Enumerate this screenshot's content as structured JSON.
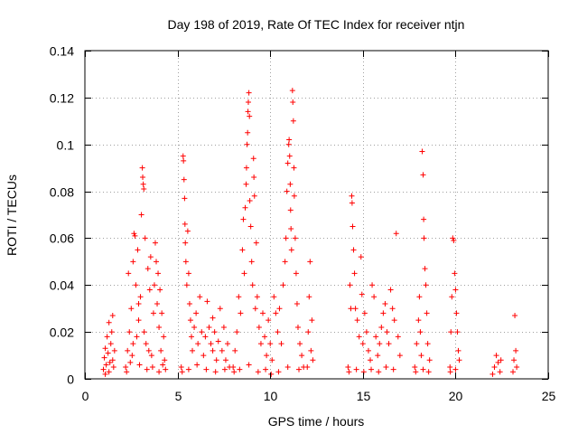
{
  "chart_data": {
    "type": "scatter",
    "title": "Day 198 of 2019, Rate Of TEC Index for receiver ntjn",
    "xlabel": "GPS time / hours",
    "ylabel": "ROTI / TECUs",
    "xlim": [
      0,
      25
    ],
    "ylim": [
      0,
      0.14
    ],
    "xticks": [
      0,
      5,
      10,
      15,
      20,
      25
    ],
    "xtick_labels": [
      "0",
      "5",
      "10",
      "15",
      "20",
      "25"
    ],
    "yticks": [
      0,
      0.02,
      0.04,
      0.06,
      0.08,
      0.1,
      0.12,
      0.14
    ],
    "ytick_labels": [
      "0",
      "0.02",
      "0.04",
      "0.06",
      "0.08",
      "0.1",
      "0.12",
      "0.14"
    ],
    "grid": true,
    "marker": "+",
    "color": "#ff0000",
    "series": [
      {
        "name": "ROTI",
        "points": [
          [
            1.0,
            0.004
          ],
          [
            1.05,
            0.009
          ],
          [
            1.1,
            0.013
          ],
          [
            1.15,
            0.006
          ],
          [
            1.2,
            0.018
          ],
          [
            1.25,
            0.011
          ],
          [
            1.3,
            0.024
          ],
          [
            1.35,
            0.007
          ],
          [
            1.4,
            0.015
          ],
          [
            1.45,
            0.02
          ],
          [
            1.5,
            0.027
          ],
          [
            1.55,
            0.005
          ],
          [
            1.6,
            0.012
          ],
          [
            1.1,
            0.002
          ],
          [
            1.3,
            0.003
          ],
          [
            1.5,
            0.008
          ],
          [
            2.2,
            0.005
          ],
          [
            2.3,
            0.012
          ],
          [
            2.35,
            0.045
          ],
          [
            2.4,
            0.02
          ],
          [
            2.5,
            0.03
          ],
          [
            2.6,
            0.05
          ],
          [
            2.65,
            0.062
          ],
          [
            2.7,
            0.061
          ],
          [
            2.75,
            0.04
          ],
          [
            2.8,
            0.018
          ],
          [
            2.85,
            0.055
          ],
          [
            2.9,
            0.025
          ],
          [
            3.0,
            0.035
          ],
          [
            3.05,
            0.07
          ],
          [
            3.1,
            0.09
          ],
          [
            3.12,
            0.086
          ],
          [
            3.15,
            0.083
          ],
          [
            3.18,
            0.081
          ],
          [
            3.2,
            0.02
          ],
          [
            3.25,
            0.06
          ],
          [
            3.3,
            0.015
          ],
          [
            3.4,
            0.047
          ],
          [
            3.5,
            0.038
          ],
          [
            3.55,
            0.052
          ],
          [
            3.6,
            0.01
          ],
          [
            3.7,
            0.028
          ],
          [
            3.75,
            0.04
          ],
          [
            3.8,
            0.058
          ],
          [
            3.85,
            0.05
          ],
          [
            3.9,
            0.032
          ],
          [
            3.95,
            0.045
          ],
          [
            4.0,
            0.022
          ],
          [
            4.05,
            0.038
          ],
          [
            4.1,
            0.012
          ],
          [
            4.15,
            0.028
          ],
          [
            4.2,
            0.006
          ],
          [
            4.25,
            0.018
          ],
          [
            4.3,
            0.008
          ],
          [
            4.35,
            0.004
          ],
          [
            2.25,
            0.003
          ],
          [
            2.45,
            0.007
          ],
          [
            2.55,
            0.01
          ],
          [
            2.95,
            0.006
          ],
          [
            3.35,
            0.004
          ],
          [
            3.45,
            0.012
          ],
          [
            3.65,
            0.005
          ],
          [
            4.0,
            0.003
          ],
          [
            2.6,
            0.015
          ],
          [
            2.9,
            0.032
          ],
          [
            5.2,
            0.005
          ],
          [
            5.3,
            0.095
          ],
          [
            5.32,
            0.093
          ],
          [
            5.35,
            0.085
          ],
          [
            5.38,
            0.077
          ],
          [
            5.4,
            0.066
          ],
          [
            5.42,
            0.058
          ],
          [
            5.45,
            0.05
          ],
          [
            5.5,
            0.04
          ],
          [
            5.55,
            0.063
          ],
          [
            5.6,
            0.045
          ],
          [
            5.65,
            0.032
          ],
          [
            5.7,
            0.025
          ],
          [
            5.75,
            0.018
          ],
          [
            5.8,
            0.012
          ],
          [
            5.9,
            0.022
          ],
          [
            6.0,
            0.028
          ],
          [
            6.1,
            0.015
          ],
          [
            6.2,
            0.035
          ],
          [
            6.3,
            0.02
          ],
          [
            6.4,
            0.01
          ],
          [
            6.5,
            0.018
          ],
          [
            6.6,
            0.033
          ],
          [
            6.7,
            0.022
          ],
          [
            6.8,
            0.015
          ],
          [
            6.9,
            0.012
          ],
          [
            7.0,
            0.02
          ],
          [
            7.1,
            0.008
          ],
          [
            7.2,
            0.016
          ],
          [
            7.3,
            0.03
          ],
          [
            7.4,
            0.012
          ],
          [
            7.5,
            0.022
          ],
          [
            7.6,
            0.008
          ],
          [
            7.7,
            0.015
          ],
          [
            7.8,
            0.005
          ],
          [
            5.25,
            0.003
          ],
          [
            5.6,
            0.004
          ],
          [
            6.05,
            0.006
          ],
          [
            6.55,
            0.004
          ],
          [
            7.05,
            0.003
          ],
          [
            7.55,
            0.004
          ],
          [
            6.9,
            0.026
          ],
          [
            8.0,
            0.005
          ],
          [
            8.1,
            0.012
          ],
          [
            8.2,
            0.02
          ],
          [
            8.3,
            0.035
          ],
          [
            8.4,
            0.028
          ],
          [
            8.5,
            0.055
          ],
          [
            8.55,
            0.068
          ],
          [
            8.6,
            0.045
          ],
          [
            8.65,
            0.073
          ],
          [
            8.7,
            0.083
          ],
          [
            8.72,
            0.09
          ],
          [
            8.75,
            0.1
          ],
          [
            8.78,
            0.105
          ],
          [
            8.8,
            0.114
          ],
          [
            8.82,
            0.118
          ],
          [
            8.85,
            0.122
          ],
          [
            8.88,
            0.112
          ],
          [
            8.9,
            0.076
          ],
          [
            8.95,
            0.065
          ],
          [
            9.0,
            0.05
          ],
          [
            9.05,
            0.04
          ],
          [
            9.1,
            0.094
          ],
          [
            9.12,
            0.086
          ],
          [
            9.15,
            0.078
          ],
          [
            9.2,
            0.03
          ],
          [
            9.25,
            0.058
          ],
          [
            9.3,
            0.035
          ],
          [
            9.4,
            0.022
          ],
          [
            9.5,
            0.015
          ],
          [
            9.6,
            0.028
          ],
          [
            9.7,
            0.018
          ],
          [
            9.8,
            0.01
          ],
          [
            9.9,
            0.025
          ],
          [
            10.0,
            0.015
          ],
          [
            10.1,
            0.008
          ],
          [
            10.2,
            0.035
          ],
          [
            10.3,
            0.028
          ],
          [
            10.4,
            0.02
          ],
          [
            10.5,
            0.03
          ],
          [
            10.6,
            0.015
          ],
          [
            10.7,
            0.04
          ],
          [
            10.8,
            0.05
          ],
          [
            10.85,
            0.06
          ],
          [
            10.9,
            0.08
          ],
          [
            10.95,
            0.092
          ],
          [
            11.0,
            0.1
          ],
          [
            11.02,
            0.102
          ],
          [
            11.05,
            0.095
          ],
          [
            11.08,
            0.083
          ],
          [
            11.1,
            0.072
          ],
          [
            11.12,
            0.064
          ],
          [
            11.15,
            0.055
          ],
          [
            11.2,
            0.123
          ],
          [
            11.22,
            0.118
          ],
          [
            11.25,
            0.11
          ],
          [
            11.28,
            0.09
          ],
          [
            11.3,
            0.078
          ],
          [
            11.35,
            0.06
          ],
          [
            11.4,
            0.045
          ],
          [
            11.45,
            0.032
          ],
          [
            11.5,
            0.022
          ],
          [
            11.6,
            0.015
          ],
          [
            11.7,
            0.01
          ],
          [
            11.8,
            0.005
          ],
          [
            8.05,
            0.003
          ],
          [
            8.35,
            0.004
          ],
          [
            8.85,
            0.006
          ],
          [
            9.35,
            0.003
          ],
          [
            9.75,
            0.004
          ],
          [
            10.05,
            0.002
          ],
          [
            10.45,
            0.003
          ],
          [
            10.95,
            0.005
          ],
          [
            11.55,
            0.004
          ],
          [
            12.0,
            0.005
          ],
          [
            12.05,
            0.02
          ],
          [
            12.1,
            0.035
          ],
          [
            12.15,
            0.05
          ],
          [
            12.2,
            0.012
          ],
          [
            12.25,
            0.025
          ],
          [
            12.3,
            0.008
          ],
          [
            14.2,
            0.005
          ],
          [
            14.3,
            0.04
          ],
          [
            14.35,
            0.03
          ],
          [
            14.4,
            0.078
          ],
          [
            14.42,
            0.075
          ],
          [
            14.45,
            0.065
          ],
          [
            14.5,
            0.055
          ],
          [
            14.55,
            0.045
          ],
          [
            14.6,
            0.03
          ],
          [
            14.7,
            0.025
          ],
          [
            14.8,
            0.018
          ],
          [
            14.9,
            0.052
          ],
          [
            14.95,
            0.036
          ],
          [
            15.0,
            0.015
          ],
          [
            15.1,
            0.028
          ],
          [
            15.2,
            0.02
          ],
          [
            15.3,
            0.012
          ],
          [
            15.4,
            0.008
          ],
          [
            15.5,
            0.04
          ],
          [
            15.6,
            0.035
          ],
          [
            15.7,
            0.018
          ],
          [
            15.8,
            0.01
          ],
          [
            15.9,
            0.015
          ],
          [
            16.0,
            0.022
          ],
          [
            16.1,
            0.028
          ],
          [
            16.2,
            0.032
          ],
          [
            16.3,
            0.02
          ],
          [
            16.4,
            0.015
          ],
          [
            16.5,
            0.038
          ],
          [
            16.6,
            0.03
          ],
          [
            16.7,
            0.025
          ],
          [
            16.8,
            0.062
          ],
          [
            16.9,
            0.018
          ],
          [
            17.0,
            0.01
          ],
          [
            14.25,
            0.003
          ],
          [
            14.65,
            0.004
          ],
          [
            15.05,
            0.003
          ],
          [
            15.45,
            0.004
          ],
          [
            15.85,
            0.003
          ],
          [
            16.25,
            0.005
          ],
          [
            16.65,
            0.004
          ],
          [
            17.8,
            0.005
          ],
          [
            17.9,
            0.015
          ],
          [
            18.0,
            0.025
          ],
          [
            18.05,
            0.035
          ],
          [
            18.1,
            0.02
          ],
          [
            18.15,
            0.01
          ],
          [
            18.2,
            0.097
          ],
          [
            18.25,
            0.087
          ],
          [
            18.28,
            0.068
          ],
          [
            18.3,
            0.06
          ],
          [
            18.35,
            0.047
          ],
          [
            18.4,
            0.04
          ],
          [
            18.45,
            0.028
          ],
          [
            18.5,
            0.015
          ],
          [
            18.6,
            0.008
          ],
          [
            17.85,
            0.003
          ],
          [
            18.25,
            0.004
          ],
          [
            18.55,
            0.003
          ],
          [
            19.7,
            0.005
          ],
          [
            19.75,
            0.02
          ],
          [
            19.8,
            0.035
          ],
          [
            19.85,
            0.06
          ],
          [
            19.9,
            0.059
          ],
          [
            19.95,
            0.045
          ],
          [
            20.0,
            0.038
          ],
          [
            20.05,
            0.028
          ],
          [
            20.1,
            0.02
          ],
          [
            20.15,
            0.012
          ],
          [
            20.2,
            0.008
          ],
          [
            19.72,
            0.003
          ],
          [
            20.0,
            0.004
          ],
          [
            22.0,
            0.002
          ],
          [
            22.1,
            0.005
          ],
          [
            22.2,
            0.01
          ],
          [
            22.3,
            0.007
          ],
          [
            22.4,
            0.003
          ],
          [
            22.45,
            0.008
          ],
          [
            23.1,
            0.003
          ],
          [
            23.15,
            0.008
          ],
          [
            23.2,
            0.027
          ],
          [
            23.25,
            0.012
          ],
          [
            23.3,
            0.005
          ]
        ]
      }
    ]
  }
}
